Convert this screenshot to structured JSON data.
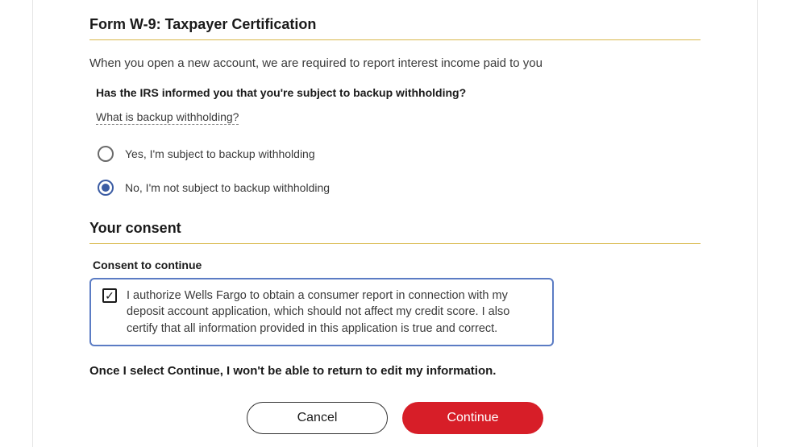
{
  "colors": {
    "accent_underline": "#d8b84a",
    "radio_selected": "#3b5ca3",
    "consent_border": "#5b7cc4",
    "continue_button": "#d71e28",
    "text_primary": "#1a1a1a",
    "text_secondary": "#3a3a3a"
  },
  "form_w9": {
    "heading": "Form W-9: Taxpayer Certification",
    "intro": "When you open a new account, we are required to report interest income paid to you",
    "question": "Has the IRS informed you that you're subject to backup withholding?",
    "help_link": "What is backup withholding?",
    "options": {
      "yes": "Yes, I'm subject to backup withholding",
      "no": "No, I'm not subject to backup withholding"
    },
    "selected": "no"
  },
  "consent": {
    "heading": "Your consent",
    "label": "Consent to continue",
    "text": "I authorize Wells Fargo to obtain a consumer report in connection with my deposit account application, which should not affect my credit score. I also certify that all information provided in this application is true and correct.",
    "checked": true
  },
  "warning": "Once I select Continue, I won't be able to return to edit my information.",
  "buttons": {
    "cancel": "Cancel",
    "continue": "Continue"
  }
}
